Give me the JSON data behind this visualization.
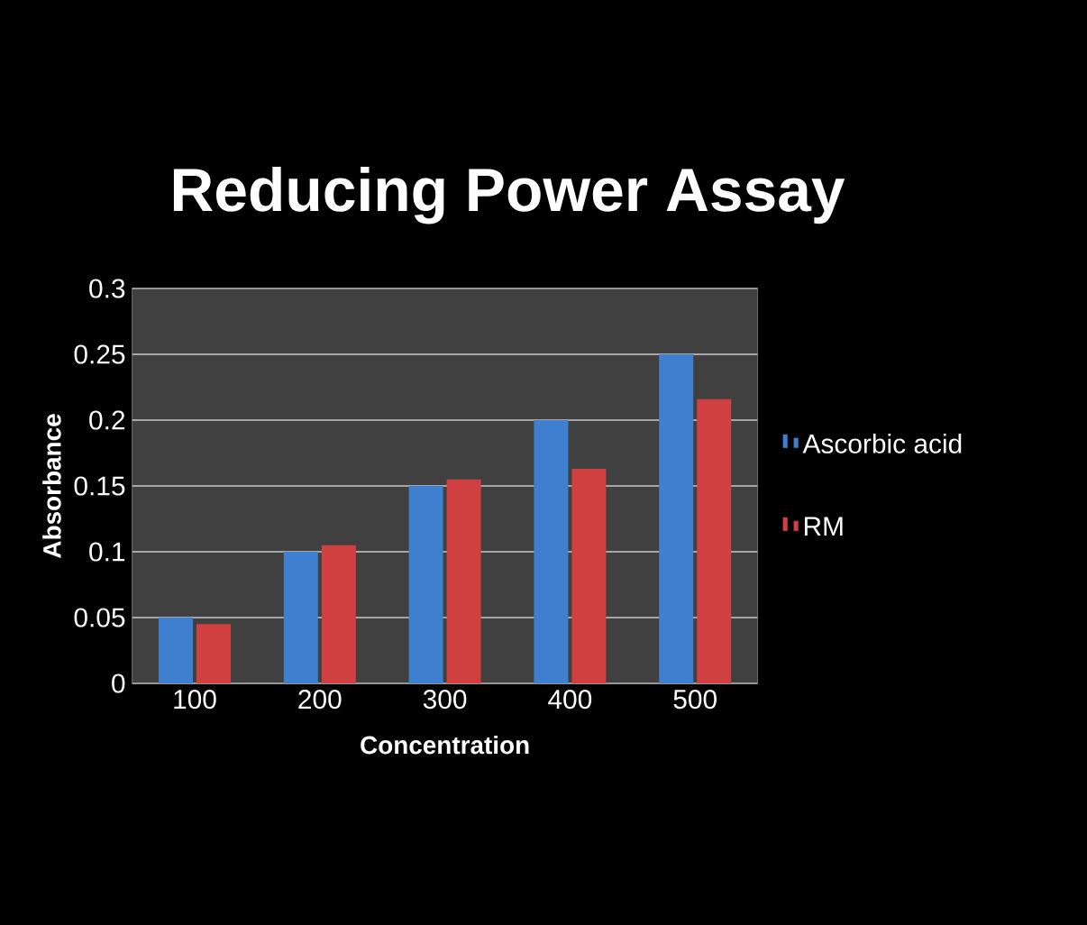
{
  "chart_data": {
    "type": "bar",
    "title": "Reducing Power Assay",
    "xlabel": "Concentration",
    "ylabel": "Absorbance",
    "categories": [
      "100",
      "200",
      "300",
      "400",
      "500"
    ],
    "series": [
      {
        "name": "Ascorbic acid",
        "color": "#3f7fd0",
        "values": [
          0.05,
          0.1,
          0.15,
          0.2,
          0.25
        ]
      },
      {
        "name": "RM",
        "color": "#d04040",
        "values": [
          0.045,
          0.105,
          0.155,
          0.163,
          0.216
        ]
      }
    ],
    "ylim": [
      0,
      0.3
    ],
    "yticks": [
      0,
      0.05,
      0.1,
      0.15,
      0.2,
      0.25,
      0.3
    ],
    "grid": "y",
    "legend": "right"
  }
}
